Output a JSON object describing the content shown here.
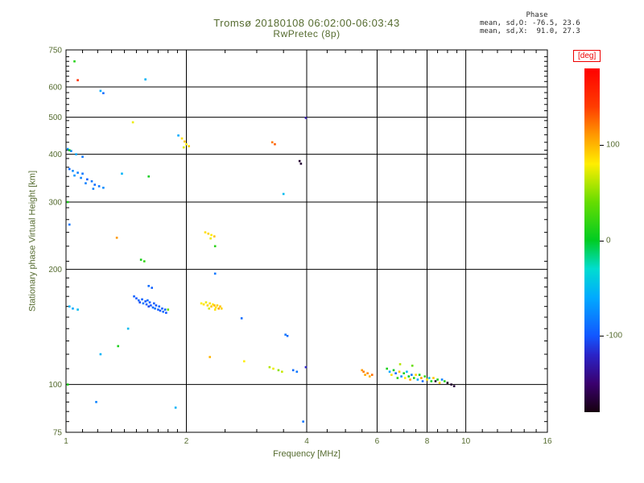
{
  "title": {
    "line1": "Tromsø 20180108 06:02:00-06:03:43",
    "line2": "RwPretec (8p)"
  },
  "stats": {
    "header": "Phase",
    "line_o": "mean, sd,O: -76.5, 23.6",
    "line_x": "mean, sd,X:  91.0, 27.3"
  },
  "colorbar": {
    "label": "[deg]",
    "ticks": [
      100,
      0,
      -100
    ],
    "range": [
      -180,
      180
    ]
  },
  "colors": {
    "annotation_text": "#556b2f",
    "stats_text": "#2a2a2a",
    "deg_label": "#ee0000",
    "axis_line": "#000000",
    "background": "#ffffff"
  },
  "chart_data": {
    "type": "scatter",
    "title": "Tromsø 20180108 06:02:00-06:03:43 / RwPretec (8p)",
    "xlabel": "Frequency [MHz]",
    "ylabel": "Stationary phase Virtual Height [km]",
    "xscale": "log",
    "yscale": "log",
    "xlim": [
      1,
      16
    ],
    "ylim": [
      75,
      750
    ],
    "x_major_ticks": [
      1,
      2,
      4,
      6,
      8,
      10,
      16
    ],
    "y_major_ticks": [
      75,
      100,
      200,
      300,
      400,
      500,
      600,
      750
    ],
    "x_gridlines": [
      2,
      4,
      6,
      8,
      10
    ],
    "y_gridlines": [
      100,
      200,
      300,
      400,
      500,
      600
    ],
    "x_minor_ticks": [
      1.1,
      1.2,
      1.3,
      1.4,
      1.5,
      1.6,
      1.7,
      1.8,
      1.9,
      2.5,
      3,
      3.5,
      4.5,
      5,
      5.5,
      6.5,
      7,
      7.5,
      8.5,
      9,
      9.5,
      11,
      12,
      13,
      14,
      15
    ],
    "y_minor_ticks": [
      80,
      85,
      90,
      95,
      110,
      120,
      130,
      140,
      150,
      160,
      170,
      180,
      190,
      210,
      230,
      250,
      270,
      290,
      310,
      330,
      350,
      370,
      390,
      410,
      430,
      450,
      470,
      490,
      520,
      540,
      560,
      580,
      620,
      640,
      660,
      680,
      700,
      720
    ],
    "grid": true,
    "legend": "colorbar right, phase in degrees",
    "colormap_stops": [
      [
        -180,
        "#16000e"
      ],
      [
        -150,
        "#3a006e"
      ],
      [
        -120,
        "#2a24c8"
      ],
      [
        -100,
        "#1257ff"
      ],
      [
        -60,
        "#00aaff"
      ],
      [
        -30,
        "#00ddd0"
      ],
      [
        0,
        "#00cc22"
      ],
      [
        40,
        "#66dd00"
      ],
      [
        80,
        "#ffee00"
      ],
      [
        110,
        "#ff9900"
      ],
      [
        140,
        "#ff3c00"
      ],
      [
        180,
        "#ff0000"
      ]
    ],
    "points_format": [
      "frequency_MHz",
      "virtual_height_km",
      "phase_deg"
    ],
    "points": [
      [
        1.05,
        700,
        15
      ],
      [
        1.07,
        625,
        150
      ],
      [
        1.22,
        586,
        -60
      ],
      [
        1.24,
        578,
        -90
      ],
      [
        1.58,
        628,
        -55
      ],
      [
        1.47,
        485,
        75
      ],
      [
        1.91,
        448,
        -60
      ],
      [
        1.95,
        440,
        85
      ],
      [
        1.98,
        432,
        95
      ],
      [
        2.0,
        425,
        80
      ],
      [
        2.03,
        420,
        90
      ],
      [
        1.97,
        417,
        70
      ],
      [
        3.28,
        430,
        120
      ],
      [
        3.33,
        425,
        130
      ],
      [
        3.98,
        498,
        -130
      ],
      [
        3.84,
        384,
        -170
      ],
      [
        3.87,
        378,
        -168
      ],
      [
        1.01,
        413,
        -75
      ],
      [
        1.03,
        408,
        -80
      ],
      [
        1.06,
        400,
        -60
      ],
      [
        1.1,
        394,
        -85
      ],
      [
        1.02,
        410,
        0
      ],
      [
        1.02,
        366,
        -90
      ],
      [
        1.04,
        362,
        -75
      ],
      [
        1.07,
        358,
        -80
      ],
      [
        1.1,
        356,
        -85
      ],
      [
        1.05,
        352,
        -70
      ],
      [
        1.09,
        347,
        -80
      ],
      [
        1.13,
        344,
        -95
      ],
      [
        1.16,
        340,
        -85
      ],
      [
        1.12,
        336,
        -80
      ],
      [
        1.18,
        333,
        -90
      ],
      [
        1.21,
        330,
        -85
      ],
      [
        1.24,
        327,
        -75
      ],
      [
        1.17,
        325,
        -80
      ],
      [
        1.38,
        356,
        -55
      ],
      [
        1.61,
        350,
        5
      ],
      [
        3.5,
        315,
        -50
      ],
      [
        1.01,
        300,
        10
      ],
      [
        1.02,
        262,
        -85
      ],
      [
        1.34,
        242,
        110
      ],
      [
        2.23,
        250,
        85
      ],
      [
        2.27,
        248,
        90
      ],
      [
        2.31,
        246,
        80
      ],
      [
        2.35,
        244,
        95
      ],
      [
        2.3,
        241,
        75
      ],
      [
        2.36,
        230,
        15
      ],
      [
        1.54,
        212,
        10
      ],
      [
        1.57,
        210,
        20
      ],
      [
        2.36,
        195,
        -85
      ],
      [
        1.48,
        170,
        -95
      ],
      [
        1.5,
        168,
        -100
      ],
      [
        1.52,
        166,
        -90
      ],
      [
        1.53,
        164,
        -105
      ],
      [
        1.55,
        167,
        -95
      ],
      [
        1.56,
        163,
        -85
      ],
      [
        1.58,
        165,
        -100
      ],
      [
        1.59,
        162,
        -95
      ],
      [
        1.6,
        166,
        -90
      ],
      [
        1.61,
        160,
        -105
      ],
      [
        1.62,
        164,
        -95
      ],
      [
        1.63,
        161,
        -100
      ],
      [
        1.65,
        159,
        -90
      ],
      [
        1.66,
        163,
        -95
      ],
      [
        1.67,
        158,
        -85
      ],
      [
        1.68,
        161,
        -100
      ],
      [
        1.7,
        157,
        -95
      ],
      [
        1.71,
        160,
        -90
      ],
      [
        1.72,
        156,
        -100
      ],
      [
        1.74,
        158,
        -95
      ],
      [
        1.75,
        155,
        -90
      ],
      [
        1.77,
        157,
        -95
      ],
      [
        1.78,
        154,
        -100
      ],
      [
        1.61,
        181,
        -90
      ],
      [
        1.64,
        179,
        -95
      ],
      [
        1.8,
        157,
        40
      ],
      [
        1.02,
        160,
        -55
      ],
      [
        1.04,
        158,
        -60
      ],
      [
        1.07,
        157,
        -50
      ],
      [
        1.43,
        140,
        -50
      ],
      [
        2.18,
        163,
        80
      ],
      [
        2.21,
        162,
        85
      ],
      [
        2.24,
        164,
        75
      ],
      [
        2.26,
        161,
        90
      ],
      [
        2.29,
        163,
        85
      ],
      [
        2.31,
        160,
        95
      ],
      [
        2.33,
        162,
        80
      ],
      [
        2.35,
        161,
        100
      ],
      [
        2.37,
        159,
        85
      ],
      [
        2.39,
        161,
        90
      ],
      [
        2.41,
        158,
        105
      ],
      [
        2.43,
        160,
        95
      ],
      [
        2.45,
        158,
        90
      ],
      [
        2.28,
        158,
        70
      ],
      [
        2.36,
        157,
        85
      ],
      [
        2.75,
        149,
        -90
      ],
      [
        3.54,
        135,
        -85
      ],
      [
        3.58,
        134,
        -90
      ],
      [
        1.22,
        120,
        -55
      ],
      [
        1.35,
        126,
        10
      ],
      [
        2.29,
        118,
        100
      ],
      [
        2.79,
        115,
        80
      ],
      [
        3.23,
        111,
        60
      ],
      [
        3.3,
        110,
        75
      ],
      [
        3.4,
        109,
        50
      ],
      [
        3.47,
        108,
        65
      ],
      [
        3.7,
        109,
        -90
      ],
      [
        3.78,
        108,
        -85
      ],
      [
        3.98,
        111,
        -120
      ],
      [
        5.5,
        109,
        110
      ],
      [
        5.55,
        108,
        120
      ],
      [
        5.6,
        106,
        105
      ],
      [
        5.68,
        107,
        115
      ],
      [
        5.75,
        105,
        100
      ],
      [
        5.83,
        106,
        125
      ],
      [
        6.35,
        110,
        10
      ],
      [
        6.45,
        108,
        -60
      ],
      [
        6.52,
        106,
        85
      ],
      [
        6.6,
        109,
        0
      ],
      [
        6.68,
        107,
        -90
      ],
      [
        6.75,
        104,
        20
      ],
      [
        6.82,
        108,
        95
      ],
      [
        6.85,
        113,
        60
      ],
      [
        6.9,
        105,
        -75
      ],
      [
        7.0,
        107,
        10
      ],
      [
        7.05,
        104,
        80
      ],
      [
        7.12,
        108,
        -50
      ],
      [
        7.2,
        105,
        0
      ],
      [
        7.26,
        103,
        105
      ],
      [
        7.32,
        106,
        -85
      ],
      [
        7.35,
        112,
        40
      ],
      [
        7.42,
        104,
        15
      ],
      [
        7.5,
        106,
        90
      ],
      [
        7.58,
        103,
        -60
      ],
      [
        7.66,
        106,
        5
      ],
      [
        7.74,
        104,
        110
      ],
      [
        7.8,
        102,
        -90
      ],
      [
        7.9,
        105,
        20
      ],
      [
        8.0,
        103,
        85
      ],
      [
        8.1,
        104,
        -45
      ],
      [
        8.2,
        102,
        0
      ],
      [
        8.3,
        104,
        95
      ],
      [
        8.4,
        102,
        -170
      ],
      [
        8.5,
        103,
        10
      ],
      [
        8.6,
        101,
        90
      ],
      [
        8.72,
        103,
        -80
      ],
      [
        8.85,
        102,
        15
      ],
      [
        9.0,
        101,
        -175
      ],
      [
        9.2,
        100,
        -170
      ],
      [
        9.35,
        99,
        -165
      ],
      [
        1.01,
        100,
        10
      ],
      [
        1.19,
        90,
        -80
      ],
      [
        1.88,
        87,
        -55
      ],
      [
        3.92,
        80,
        -85
      ]
    ]
  }
}
